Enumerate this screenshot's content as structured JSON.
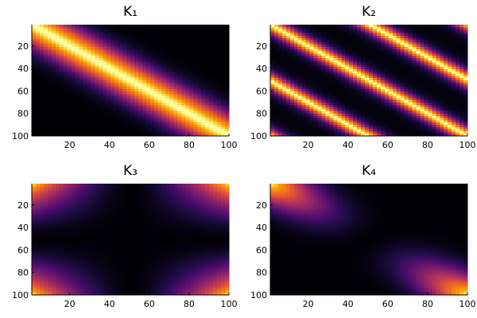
{
  "chart_data": [
    {
      "type": "heatmap",
      "title": "K₁",
      "xticks": [
        "20",
        "40",
        "60",
        "80",
        "100"
      ],
      "yticks": [
        "20",
        "40",
        "60",
        "80",
        "100"
      ],
      "xlim": [
        1,
        100
      ],
      "ylim": [
        1,
        100
      ],
      "y_direction": "top-to-bottom",
      "colormap": "inferno",
      "kernel": "squared-exponential band along diagonal"
    },
    {
      "type": "heatmap",
      "title": "K₂",
      "xticks": [
        "20",
        "40",
        "60",
        "80",
        "100"
      ],
      "yticks": [
        "20",
        "40",
        "60",
        "80",
        "100"
      ],
      "xlim": [
        1,
        100
      ],
      "ylim": [
        1,
        100
      ],
      "y_direction": "top-to-bottom",
      "colormap": "inferno",
      "kernel": "periodic"
    },
    {
      "type": "heatmap",
      "title": "K₃",
      "xticks": [
        "20",
        "40",
        "60",
        "80",
        "100"
      ],
      "yticks": [
        "20",
        "40",
        "60",
        "80",
        "100"
      ],
      "xlim": [
        1,
        100
      ],
      "ylim": [
        1,
        100
      ],
      "y_direction": "top-to-bottom",
      "colormap": "inferno",
      "kernel": "bright corners"
    },
    {
      "type": "heatmap",
      "title": "K₄",
      "xticks": [
        "20",
        "40",
        "60",
        "80",
        "100"
      ],
      "yticks": [
        "20",
        "40",
        "60",
        "80",
        "100"
      ],
      "xlim": [
        1,
        100
      ],
      "ylim": [
        1,
        100
      ],
      "y_direction": "top-to-bottom",
      "colormap": "inferno",
      "kernel": "diagonal with ends brightest"
    }
  ]
}
